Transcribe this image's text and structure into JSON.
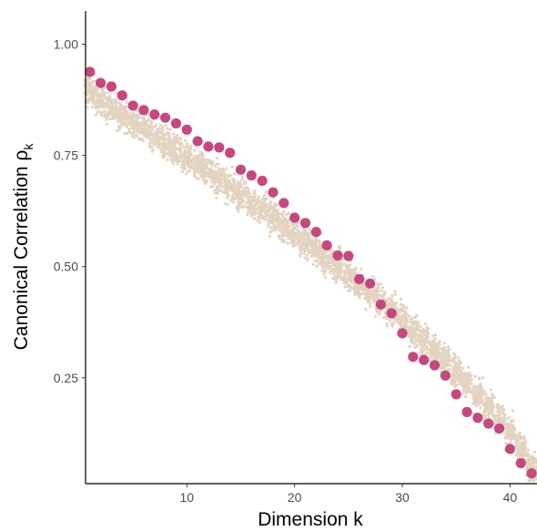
{
  "chart_data": {
    "type": "scatter",
    "xlabel": "Dimension k",
    "ylabel": {
      "main": "Canonical Correlation ρ",
      "subscript": "k"
    },
    "xlim": [
      0.6,
      42.5
    ],
    "ylim": [
      0.012,
      1.075
    ],
    "x_ticks": [
      10,
      20,
      30,
      40
    ],
    "y_ticks": [
      0.25,
      0.5,
      0.75,
      1.0
    ],
    "x_tick_labels": [
      "10",
      "20",
      "30",
      "40"
    ],
    "y_tick_labels": [
      "0.25",
      "0.50",
      "0.75",
      "1.00"
    ],
    "grid": false,
    "legend": "none",
    "colors": {
      "observed": "#c4497f",
      "null": "#e3d3c1",
      "axis": "#000000"
    },
    "series": [
      {
        "role": "observed",
        "x": [
          1,
          2,
          3,
          4,
          5,
          6,
          7,
          8,
          9,
          10,
          11,
          12,
          13,
          14,
          15,
          16,
          17,
          18,
          19,
          20,
          21,
          22,
          23,
          24,
          25,
          26,
          27,
          28,
          29,
          30,
          31,
          32,
          33,
          34,
          35,
          36,
          37,
          38,
          39,
          40,
          41,
          42
        ],
        "y": [
          0.938,
          0.913,
          0.905,
          0.885,
          0.862,
          0.852,
          0.842,
          0.835,
          0.822,
          0.808,
          0.782,
          0.77,
          0.768,
          0.756,
          0.718,
          0.705,
          0.693,
          0.667,
          0.643,
          0.61,
          0.598,
          0.578,
          0.548,
          0.525,
          0.524,
          0.472,
          0.462,
          0.415,
          0.395,
          0.35,
          0.297,
          0.29,
          0.278,
          0.255,
          0.213,
          0.173,
          0.16,
          0.147,
          0.136,
          0.09,
          0.058,
          0.035
        ]
      },
      {
        "role": "null",
        "center": [
          0.895,
          0.875,
          0.857,
          0.84,
          0.825,
          0.81,
          0.793,
          0.778,
          0.762,
          0.747,
          0.73,
          0.713,
          0.697,
          0.68,
          0.663,
          0.645,
          0.628,
          0.61,
          0.592,
          0.573,
          0.555,
          0.537,
          0.518,
          0.499,
          0.48,
          0.461,
          0.441,
          0.421,
          0.4,
          0.379,
          0.357,
          0.335,
          0.312,
          0.289,
          0.265,
          0.24,
          0.214,
          0.187,
          0.158,
          0.127,
          0.092,
          0.05
        ],
        "spread": 0.032,
        "samples_per_dimension": 90
      }
    ]
  }
}
